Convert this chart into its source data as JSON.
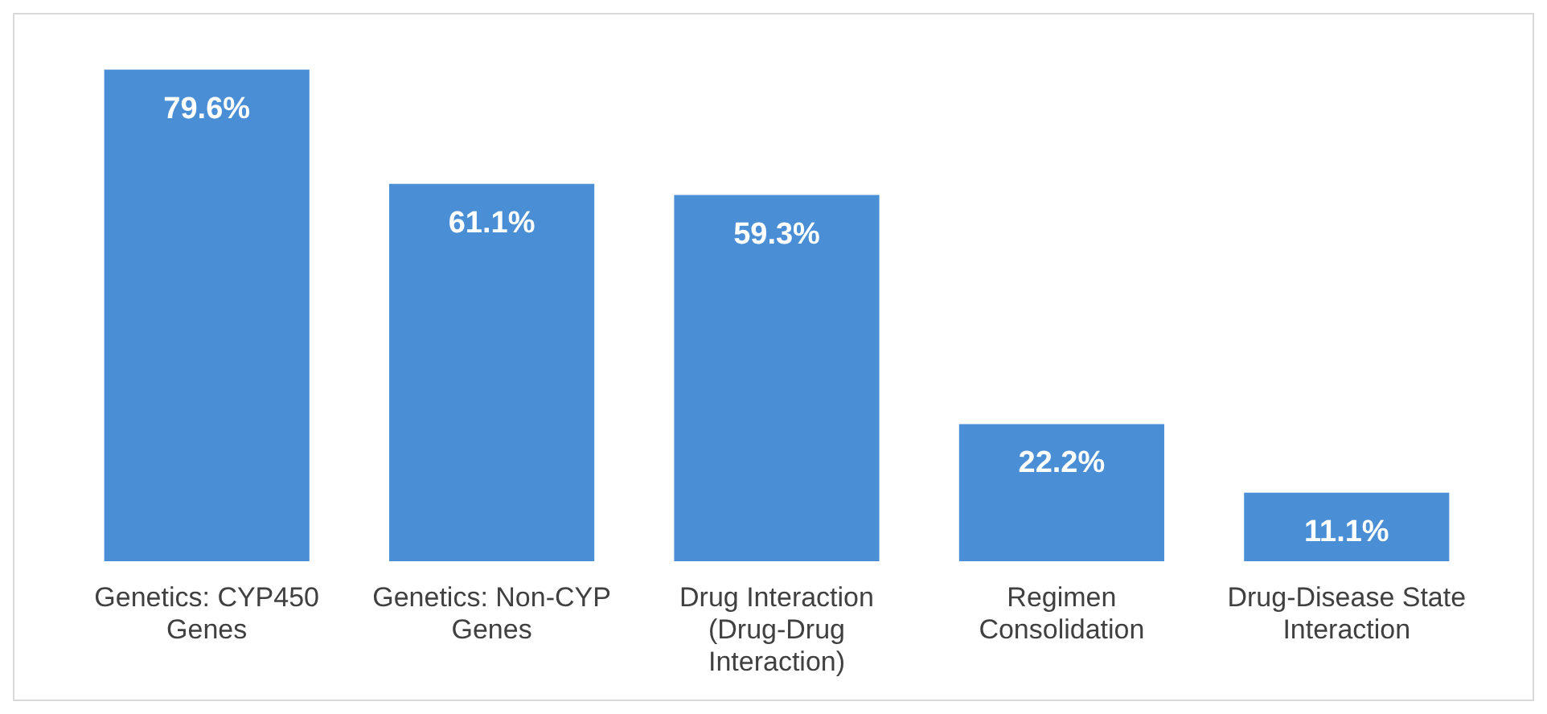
{
  "chart_data": {
    "type": "bar",
    "categories": [
      "Genetics: CYP450 Genes",
      "Genetics: Non-CYP Genes",
      "Drug Interaction (Drug-Drug Interaction)",
      "Regimen Consolidation",
      "Drug-Disease State Interaction"
    ],
    "values": [
      79.6,
      61.1,
      59.3,
      22.2,
      11.1
    ],
    "value_labels": [
      "79.6%",
      "61.1%",
      "59.3%",
      "22.2%",
      "11.1%"
    ],
    "color": "#4a8fd6"
  }
}
